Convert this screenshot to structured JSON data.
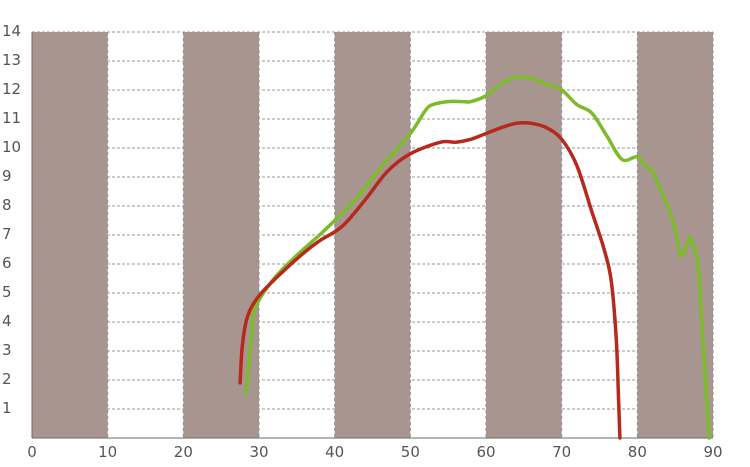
{
  "chart_data": {
    "type": "line",
    "title": "",
    "xlabel": "",
    "ylabel": "",
    "xlim": [
      0,
      90
    ],
    "ylim": [
      0,
      14
    ],
    "x_ticks": [
      "0",
      "10",
      "20",
      "30",
      "40",
      "50",
      "60",
      "70",
      "80",
      "90"
    ],
    "y_ticks": [
      "1",
      "2",
      "3",
      "4",
      "5",
      "6",
      "7",
      "8",
      "9",
      "10",
      "11",
      "12",
      "13",
      "14"
    ],
    "band_color": "#a99590",
    "grid": true,
    "series": [
      {
        "color": "#7cbb2a",
        "points": [
          [
            28.3,
            1.5
          ],
          [
            29,
            3.5
          ],
          [
            29.5,
            4.5
          ],
          [
            32,
            5.5
          ],
          [
            35,
            6.3
          ],
          [
            38,
            7.0
          ],
          [
            40,
            7.5
          ],
          [
            43,
            8.3
          ],
          [
            46,
            9.3
          ],
          [
            50,
            10.5
          ],
          [
            52,
            11.3
          ],
          [
            53,
            11.5
          ],
          [
            55,
            11.6
          ],
          [
            57,
            11.6
          ],
          [
            58,
            11.6
          ],
          [
            60,
            11.8
          ],
          [
            62,
            12.2
          ],
          [
            64,
            12.45
          ],
          [
            66,
            12.4
          ],
          [
            68,
            12.2
          ],
          [
            70,
            12.0
          ],
          [
            72,
            11.5
          ],
          [
            74,
            11.2
          ],
          [
            76,
            10.4
          ],
          [
            78,
            9.6
          ],
          [
            80,
            9.7
          ],
          [
            81,
            9.4
          ],
          [
            82,
            9.2
          ],
          [
            83,
            8.6
          ],
          [
            84,
            8.0
          ],
          [
            85,
            7.2
          ],
          [
            85.7,
            6.3
          ],
          [
            86.5,
            6.6
          ],
          [
            87,
            6.9
          ],
          [
            88,
            6.0
          ],
          [
            88.5,
            4.0
          ],
          [
            89,
            2.0
          ],
          [
            89.5,
            0
          ]
        ]
      },
      {
        "color": "#b52a1c",
        "points": [
          [
            27.5,
            1.9
          ],
          [
            27.8,
            3.2
          ],
          [
            28.5,
            4.2
          ],
          [
            30,
            4.9
          ],
          [
            33,
            5.7
          ],
          [
            36,
            6.4
          ],
          [
            38,
            6.8
          ],
          [
            41,
            7.3
          ],
          [
            44,
            8.2
          ],
          [
            47,
            9.2
          ],
          [
            50,
            9.8
          ],
          [
            54,
            10.2
          ],
          [
            56,
            10.2
          ],
          [
            58,
            10.3
          ],
          [
            60,
            10.5
          ],
          [
            62,
            10.7
          ],
          [
            64,
            10.85
          ],
          [
            66,
            10.85
          ],
          [
            68,
            10.7
          ],
          [
            70,
            10.3
          ],
          [
            72,
            9.4
          ],
          [
            74,
            7.8
          ],
          [
            75.5,
            6.6
          ],
          [
            76.5,
            5.5
          ],
          [
            77.2,
            3.5
          ],
          [
            77.5,
            1.5
          ],
          [
            77.7,
            0
          ]
        ]
      }
    ]
  }
}
